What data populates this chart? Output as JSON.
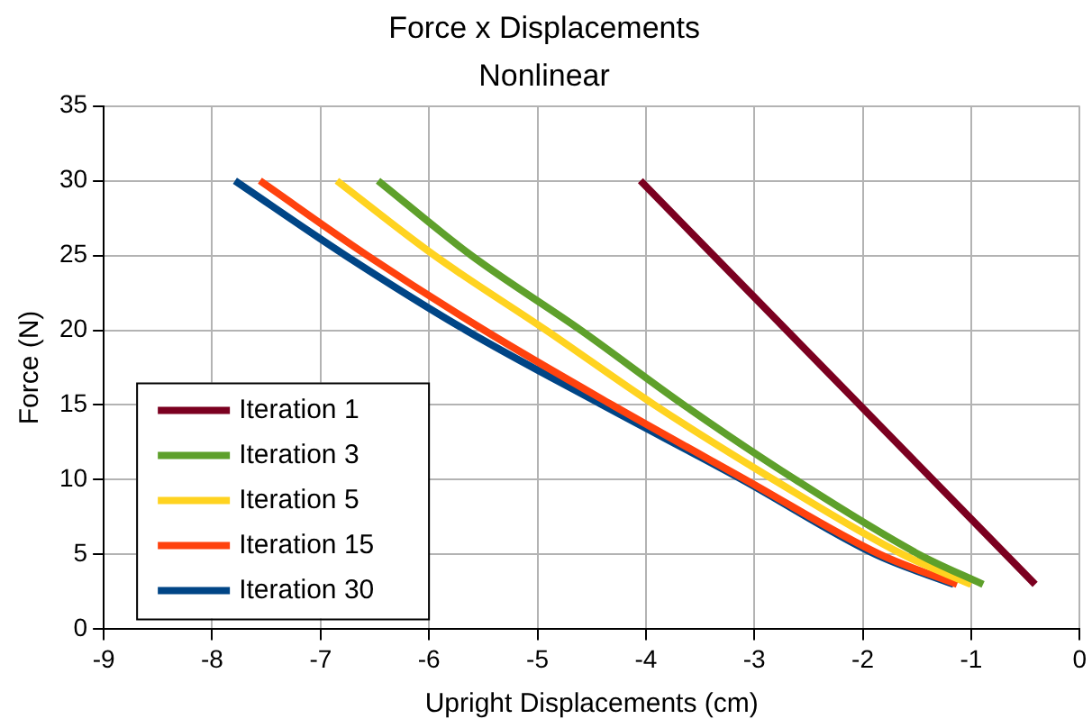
{
  "chart_data": {
    "type": "line",
    "title": "Force x Displacements",
    "subtitle": "Nonlinear",
    "xlabel": "Upright Displacements (cm)",
    "ylabel": "Force (N)",
    "xlim": [
      -9,
      0
    ],
    "xticks": [
      -9,
      -8,
      -7,
      -6,
      -5,
      -4,
      -3,
      -2,
      -1,
      0
    ],
    "ylim": [
      0,
      35
    ],
    "yticks": [
      0,
      5,
      10,
      15,
      20,
      25,
      30,
      35
    ],
    "grid": true,
    "legend": "bottom left",
    "marker": "none",
    "line_style": "solid",
    "series": [
      {
        "name": "Iteration 1",
        "color": "#7b0020",
        "x": [
          -4.05,
          -0.41
        ],
        "values": [
          30,
          3
        ]
      },
      {
        "name": "Iteration 3",
        "color": "#5ea02b",
        "x": [
          -6.47,
          -5.61,
          -4.6,
          -3.65,
          -2.62,
          -1.48,
          -0.89
        ],
        "values": [
          30,
          25,
          20,
          15,
          10,
          5,
          3
        ]
      },
      {
        "name": "Iteration 5",
        "color": "#ffd320",
        "x": [
          -6.85,
          -5.95,
          -4.92,
          -3.92,
          -2.82,
          -1.63,
          -1.0
        ],
        "values": [
          30,
          25,
          20,
          15,
          10,
          5,
          3
        ]
      },
      {
        "name": "Iteration 15",
        "color": "#ff420e",
        "x": [
          -7.56,
          -6.57,
          -5.49,
          -4.31,
          -3.08,
          -1.84,
          -1.13
        ],
        "values": [
          30,
          25,
          20,
          15,
          10,
          5,
          3
        ]
      },
      {
        "name": "Iteration 30",
        "color": "#004586",
        "x": [
          -7.79,
          -6.77,
          -5.66,
          -4.4,
          -3.11,
          -1.88,
          -1.16
        ],
        "values": [
          30,
          25,
          20,
          15,
          10,
          5,
          3
        ]
      }
    ]
  }
}
